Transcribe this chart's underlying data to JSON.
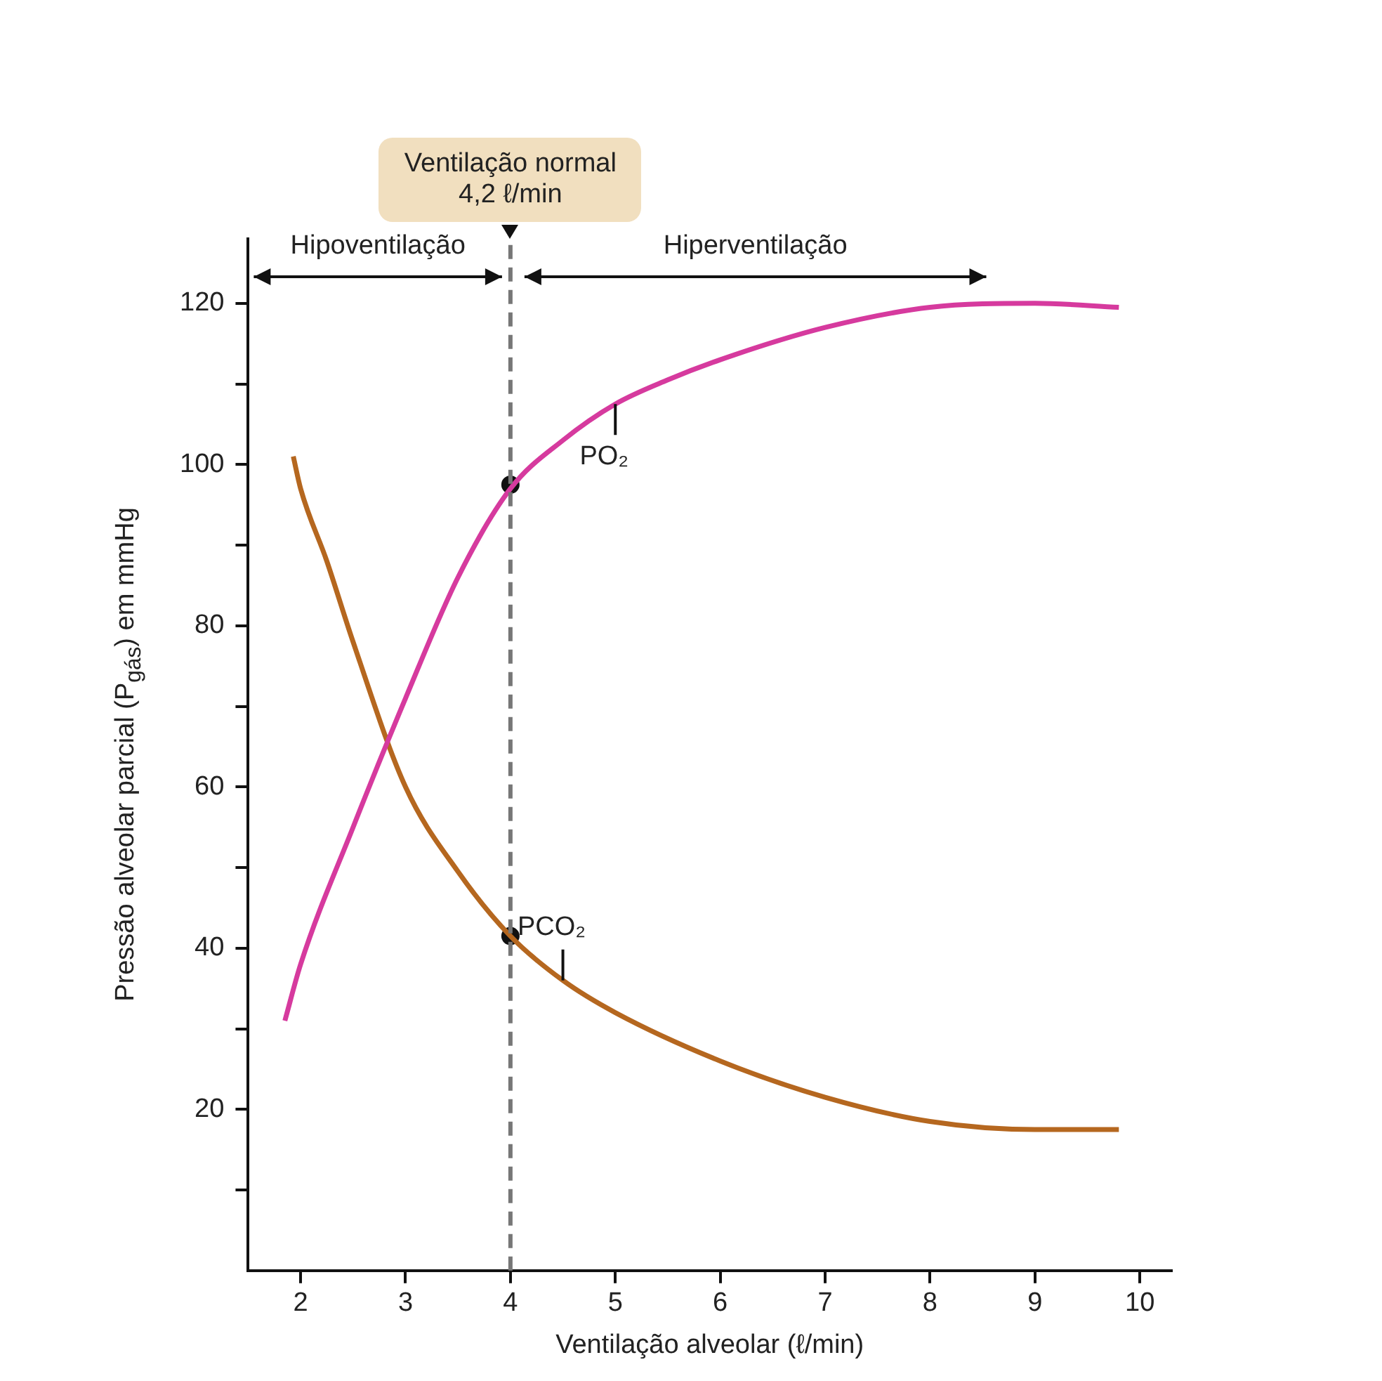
{
  "chart_data": {
    "type": "line",
    "xlabel": "Ventilação alveolar (ℓ/min)",
    "ylabel": "Pressão alveolar parcial (P$_{gás}$) em mmHg",
    "xlim": [
      1.5,
      10.3
    ],
    "xticks": [
      2,
      3,
      4,
      5,
      6,
      7,
      8,
      9,
      10
    ],
    "ylim": [
      0,
      128
    ],
    "yticks": [
      {
        "value": 10,
        "label": null
      },
      20,
      {
        "value": 30,
        "label": null
      },
      40,
      {
        "value": 50,
        "label": null
      },
      60,
      {
        "value": 70,
        "label": null
      },
      80,
      {
        "value": 90,
        "label": null
      },
      100,
      {
        "value": 110,
        "label": null
      },
      120
    ],
    "grid": false,
    "legend": false,
    "marker": "none",
    "line_style": "solid",
    "series": [
      {
        "name": "PO₂",
        "color": "#d63a9e",
        "x": [
          1.85,
          2,
          2.5,
          3,
          3.5,
          4,
          4.5,
          5,
          5.5,
          6,
          7,
          8,
          9,
          9.8
        ],
        "values": [
          31,
          38,
          55,
          71,
          86,
          97,
          103,
          107.5,
          110.5,
          113,
          117,
          119.5,
          120,
          119.5
        ]
      },
      {
        "name": "PCO₂",
        "color": "#b5671f",
        "x": [
          1.93,
          2,
          2.25,
          2.5,
          3,
          3.5,
          4,
          4.5,
          5,
          6,
          7,
          8,
          9,
          9.8
        ],
        "values": [
          101,
          97,
          88,
          78,
          60,
          49.5,
          41.5,
          36,
          32,
          26,
          21.5,
          18.5,
          17.5,
          17.5
        ]
      },
      {
        "type": "scatter",
        "color": "#111111",
        "marker": "circle",
        "x": [
          4,
          4
        ],
        "values": [
          97.5,
          41.5
        ]
      }
    ],
    "ref_lines": [
      {
        "axis": "x",
        "value": 4,
        "label": "Ventilação normal\n4,2 ℓ/min",
        "color": "#777777",
        "line_style": "dashed"
      }
    ],
    "annotations": [
      "Hipoventilação",
      "Hiperventilação"
    ]
  }
}
